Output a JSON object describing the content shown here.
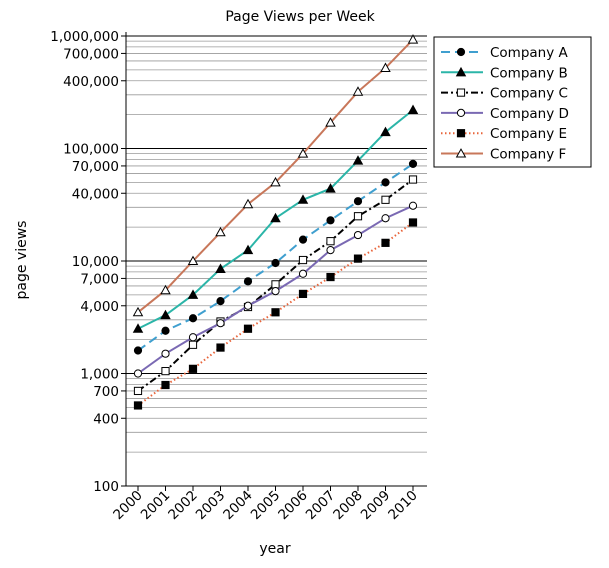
{
  "chart_data": {
    "type": "line",
    "title": "Page Views per Week",
    "xlabel": "year",
    "ylabel": "page views",
    "yscale": "log",
    "ylim": [
      100,
      1000000
    ],
    "x": [
      2000,
      2001,
      2002,
      2003,
      2004,
      2005,
      2006,
      2007,
      2008,
      2009,
      2010
    ],
    "x_tick_labels": [
      "2000",
      "2001",
      "2002",
      "2003",
      "2004",
      "2005",
      "2006",
      "2007",
      "2008",
      "2009",
      "2010"
    ],
    "y_ticks": [
      {
        "value": 100,
        "label": "100"
      },
      {
        "value": 400,
        "label": "400"
      },
      {
        "value": 700,
        "label": "700"
      },
      {
        "value": 1000,
        "label": "1,000"
      },
      {
        "value": 4000,
        "label": "4,000"
      },
      {
        "value": 7000,
        "label": "7,000"
      },
      {
        "value": 10000,
        "label": "10,000"
      },
      {
        "value": 40000,
        "label": "40,000"
      },
      {
        "value": 70000,
        "label": "70,000"
      },
      {
        "value": 100000,
        "label": "100,000"
      },
      {
        "value": 400000,
        "label": "400,000"
      },
      {
        "value": 700000,
        "label": "700,000"
      },
      {
        "value": 1000000,
        "label": "1,000,000"
      }
    ],
    "grid": "horizontal",
    "legend_position": "top-right",
    "series": [
      {
        "name": "Company A",
        "color": "#3f9fcf",
        "dash": "dashed",
        "marker": "filled-circle",
        "values": [
          1600,
          2400,
          3100,
          4400,
          6600,
          9600,
          15500,
          23000,
          34000,
          50000,
          73000
        ]
      },
      {
        "name": "Company B",
        "color": "#2bb5a8",
        "dash": "solid",
        "marker": "filled-triangle",
        "values": [
          2500,
          3300,
          5000,
          8500,
          12500,
          24000,
          35000,
          44000,
          78000,
          140000,
          220000
        ]
      },
      {
        "name": "Company C",
        "color": "#000000",
        "dash": "dash-dot",
        "marker": "open-square",
        "values": [
          700,
          1050,
          1800,
          2900,
          3900,
          6200,
          10200,
          15000,
          25000,
          35000,
          53000
        ]
      },
      {
        "name": "Company D",
        "color": "#7a69b3",
        "dash": "solid",
        "marker": "open-circle",
        "values": [
          1000,
          1500,
          2100,
          2800,
          4000,
          5400,
          7700,
          12500,
          17000,
          24000,
          31000
        ]
      },
      {
        "name": "Company E",
        "color": "#e8643a",
        "dash": "dotted",
        "marker": "filled-square",
        "values": [
          520,
          790,
          1100,
          1700,
          2500,
          3500,
          5100,
          7200,
          10500,
          14500,
          22000
        ]
      },
      {
        "name": "Company F",
        "color": "#c8775a",
        "dash": "solid",
        "marker": "open-triangle",
        "values": [
          3500,
          5500,
          10000,
          18000,
          32000,
          50000,
          90000,
          170000,
          320000,
          520000,
          930000
        ]
      }
    ]
  }
}
